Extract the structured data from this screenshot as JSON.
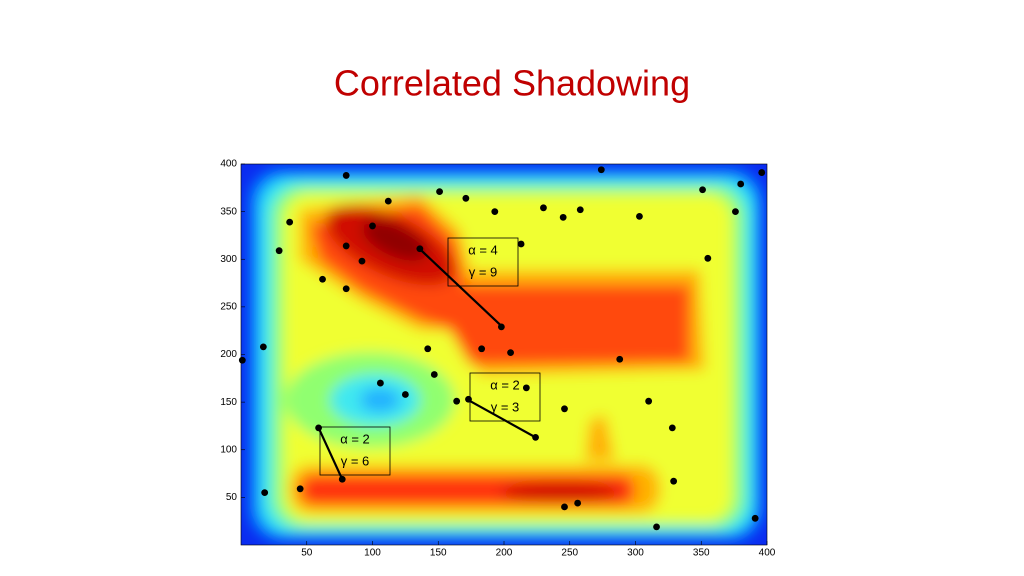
{
  "chart_data": {
    "type": "scatter",
    "title": "Correlated Shadowing",
    "xlim": [
      0,
      400
    ],
    "ylim": [
      0,
      400
    ],
    "xticks": [
      50,
      100,
      150,
      200,
      250,
      300,
      350,
      400
    ],
    "yticks": [
      50,
      100,
      150,
      200,
      250,
      300,
      350,
      400
    ],
    "color": "#000000",
    "points": {
      "x": [
        80,
        112,
        37,
        29,
        80,
        100,
        92,
        62,
        80,
        136,
        151,
        171,
        193,
        213,
        230,
        245,
        258,
        274,
        303,
        351,
        380,
        396,
        376,
        355,
        288,
        198,
        142,
        183,
        205,
        147,
        106,
        125,
        164,
        173,
        217,
        224,
        246,
        310,
        328,
        329,
        256,
        246,
        316,
        391,
        17,
        1,
        18,
        45,
        77,
        59
      ],
      "y": [
        388,
        361,
        339,
        309,
        314,
        335,
        298,
        279,
        269,
        311,
        371,
        364,
        350,
        316,
        354,
        344,
        352,
        394,
        345,
        373,
        379,
        391,
        350,
        301,
        195,
        229,
        206,
        206,
        202,
        179,
        170,
        158,
        151,
        153,
        165,
        113,
        143,
        151,
        123,
        67,
        44,
        40,
        19,
        28,
        208,
        194,
        55,
        59,
        69,
        123
      ]
    },
    "links": [
      {
        "x": [
          135,
          198
        ],
        "y": [
          312,
          230
        ]
      },
      {
        "x": [
          173,
          224
        ],
        "y": [
          152,
          113
        ]
      },
      {
        "x": [
          59,
          77
        ],
        "y": [
          123,
          69
        ]
      }
    ],
    "annotations": [
      {
        "lines": [
          "α = 4",
          "γ = 9"
        ]
      },
      {
        "lines": [
          "α = 2",
          "γ = 3"
        ]
      },
      {
        "lines": [
          "α = 2",
          "γ = 6"
        ]
      }
    ]
  }
}
